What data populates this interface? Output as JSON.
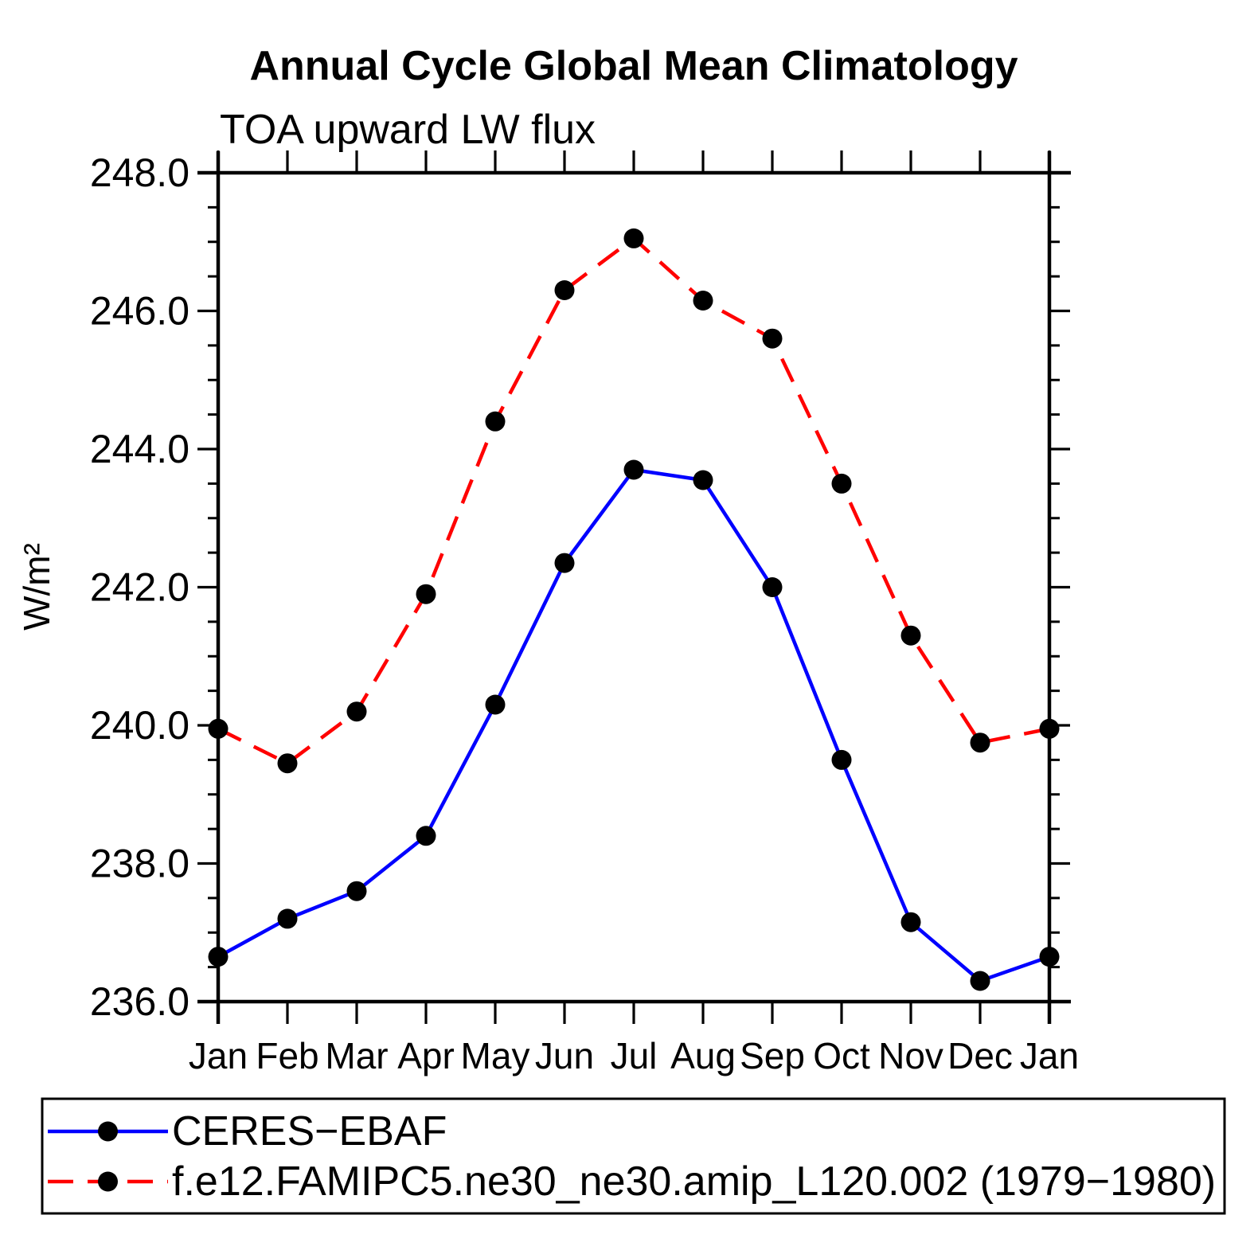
{
  "chart_data": {
    "type": "line",
    "title": "Annual Cycle Global Mean Climatology",
    "subtitle": "TOA upward LW flux",
    "ylabel": "W/m²",
    "x_categories": [
      "Jan",
      "Feb",
      "Mar",
      "Apr",
      "May",
      "Jun",
      "Jul",
      "Aug",
      "Sep",
      "Oct",
      "Nov",
      "Dec",
      "Jan"
    ],
    "ylim": [
      236.0,
      248.0
    ],
    "y_major_step": 2.0,
    "y_minor_step": 0.5,
    "y_tick_labels": [
      "236.0",
      "238.0",
      "240.0",
      "242.0",
      "244.0",
      "246.0",
      "248.0"
    ],
    "grid": false,
    "legend_position": "bottom-outside-box",
    "marker": "filled-circle",
    "marker_color": "#000000",
    "axis_color": "#000000",
    "series": [
      {
        "name": "CERES−EBAF",
        "color": "#0000ff",
        "line_style": "solid",
        "values": [
          236.65,
          237.2,
          237.6,
          238.4,
          240.3,
          242.35,
          243.7,
          243.55,
          242.0,
          239.5,
          237.15,
          236.3,
          236.65
        ]
      },
      {
        "name": "f.e12.FAMIPC5.ne30_ne30.amip_L120.002 (1979−1980)",
        "color": "#ff0000",
        "line_style": "dashed",
        "values": [
          239.95,
          239.45,
          240.2,
          241.9,
          244.4,
          246.3,
          247.05,
          246.15,
          245.6,
          243.5,
          241.3,
          239.75,
          239.95
        ]
      }
    ]
  }
}
